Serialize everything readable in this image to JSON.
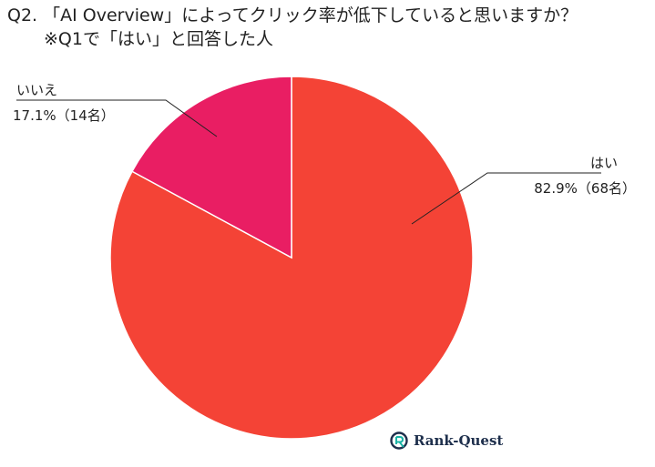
{
  "header": {
    "title_line1": "Q2. 「AI Overview」によってクリック率が低下していると思いますか？",
    "title_line2": "※Q1で「はい」と回答した人"
  },
  "chart_data": {
    "type": "pie",
    "title": "Q2. 「AI Overview」によってクリック率が低下していると思いますか？ ※Q1で「はい」と回答した人",
    "slices": [
      {
        "label": "はい",
        "percent": 82.9,
        "count": 68,
        "value_text": "82.9%（68名）",
        "color": "#f44336"
      },
      {
        "label": "いいえ",
        "percent": 17.1,
        "count": 14,
        "value_text": "17.1%（14名）",
        "color": "#e91e63"
      }
    ]
  },
  "logo": {
    "text": "Rank-Quest",
    "icon": "rank-quest-logo-icon",
    "accent": "#1ab3a6",
    "dark": "#1e2f4c"
  }
}
